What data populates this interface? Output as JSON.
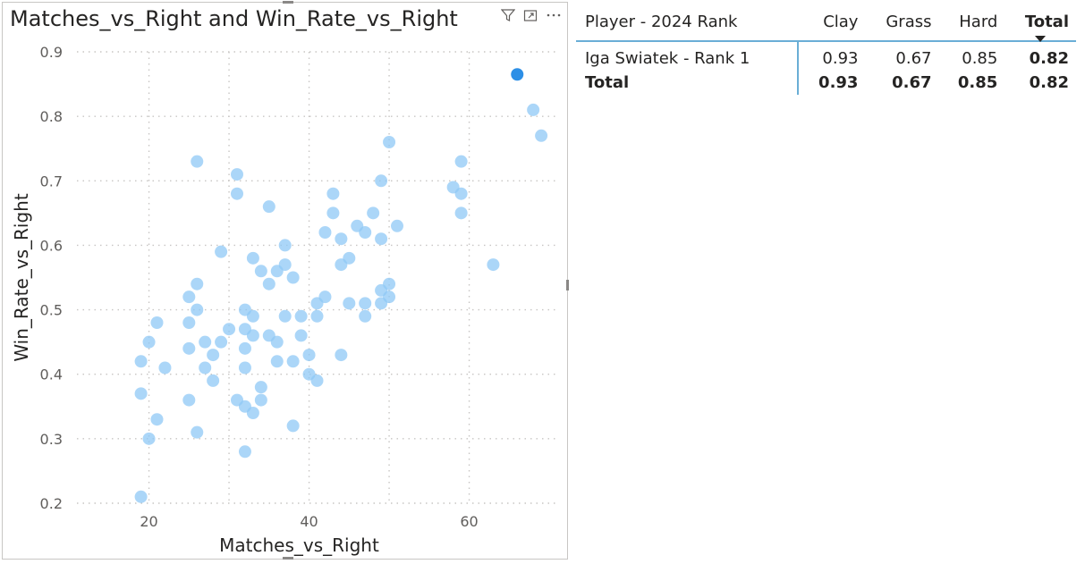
{
  "scatter": {
    "title": "Matches_vs_Right and Win_Rate_vs_Right",
    "header_icons": [
      "filter-icon",
      "focus-mode-icon",
      "more-options-icon"
    ]
  },
  "chart_data": {
    "type": "scatter",
    "title": "Matches_vs_Right and Win_Rate_vs_Right",
    "xlabel": "Matches_vs_Right",
    "ylabel": "Win_Rate_vs_Right",
    "xlim": [
      11,
      71
    ],
    "ylim": [
      0.2,
      0.9
    ],
    "x_ticks": [
      20,
      40,
      60
    ],
    "y_ticks": [
      0.2,
      0.3,
      0.4,
      0.5,
      0.6,
      0.7,
      0.8,
      0.9
    ],
    "grid": true,
    "point_color": "#8fc8f5",
    "highlight_color": "#2d8fe6",
    "highlight": {
      "x": 66,
      "y": 0.865
    },
    "points": [
      {
        "x": 19,
        "y": 0.42
      },
      {
        "x": 19,
        "y": 0.37
      },
      {
        "x": 19,
        "y": 0.21
      },
      {
        "x": 20,
        "y": 0.45
      },
      {
        "x": 20,
        "y": 0.3
      },
      {
        "x": 21,
        "y": 0.48
      },
      {
        "x": 21,
        "y": 0.33
      },
      {
        "x": 22,
        "y": 0.41
      },
      {
        "x": 25,
        "y": 0.52
      },
      {
        "x": 25,
        "y": 0.48
      },
      {
        "x": 25,
        "y": 0.44
      },
      {
        "x": 25,
        "y": 0.36
      },
      {
        "x": 26,
        "y": 0.73
      },
      {
        "x": 26,
        "y": 0.54
      },
      {
        "x": 26,
        "y": 0.5
      },
      {
        "x": 26,
        "y": 0.31
      },
      {
        "x": 27,
        "y": 0.45
      },
      {
        "x": 27,
        "y": 0.41
      },
      {
        "x": 28,
        "y": 0.43
      },
      {
        "x": 28,
        "y": 0.39
      },
      {
        "x": 29,
        "y": 0.59
      },
      {
        "x": 29,
        "y": 0.45
      },
      {
        "x": 30,
        "y": 0.47
      },
      {
        "x": 31,
        "y": 0.71
      },
      {
        "x": 31,
        "y": 0.68
      },
      {
        "x": 31,
        "y": 0.36
      },
      {
        "x": 32,
        "y": 0.5
      },
      {
        "x": 32,
        "y": 0.47
      },
      {
        "x": 32,
        "y": 0.44
      },
      {
        "x": 32,
        "y": 0.41
      },
      {
        "x": 32,
        "y": 0.35
      },
      {
        "x": 32,
        "y": 0.28
      },
      {
        "x": 33,
        "y": 0.58
      },
      {
        "x": 33,
        "y": 0.49
      },
      {
        "x": 33,
        "y": 0.46
      },
      {
        "x": 33,
        "y": 0.34
      },
      {
        "x": 34,
        "y": 0.56
      },
      {
        "x": 34,
        "y": 0.38
      },
      {
        "x": 34,
        "y": 0.36
      },
      {
        "x": 35,
        "y": 0.66
      },
      {
        "x": 35,
        "y": 0.54
      },
      {
        "x": 35,
        "y": 0.46
      },
      {
        "x": 36,
        "y": 0.56
      },
      {
        "x": 36,
        "y": 0.45
      },
      {
        "x": 36,
        "y": 0.42
      },
      {
        "x": 37,
        "y": 0.6
      },
      {
        "x": 37,
        "y": 0.57
      },
      {
        "x": 37,
        "y": 0.49
      },
      {
        "x": 38,
        "y": 0.55
      },
      {
        "x": 38,
        "y": 0.42
      },
      {
        "x": 38,
        "y": 0.32
      },
      {
        "x": 39,
        "y": 0.49
      },
      {
        "x": 39,
        "y": 0.46
      },
      {
        "x": 40,
        "y": 0.43
      },
      {
        "x": 40,
        "y": 0.4
      },
      {
        "x": 41,
        "y": 0.51
      },
      {
        "x": 41,
        "y": 0.49
      },
      {
        "x": 41,
        "y": 0.39
      },
      {
        "x": 42,
        "y": 0.62
      },
      {
        "x": 42,
        "y": 0.52
      },
      {
        "x": 43,
        "y": 0.68
      },
      {
        "x": 43,
        "y": 0.65
      },
      {
        "x": 44,
        "y": 0.61
      },
      {
        "x": 44,
        "y": 0.57
      },
      {
        "x": 44,
        "y": 0.43
      },
      {
        "x": 45,
        "y": 0.58
      },
      {
        "x": 45,
        "y": 0.51
      },
      {
        "x": 46,
        "y": 0.63
      },
      {
        "x": 47,
        "y": 0.62
      },
      {
        "x": 47,
        "y": 0.51
      },
      {
        "x": 47,
        "y": 0.49
      },
      {
        "x": 48,
        "y": 0.65
      },
      {
        "x": 49,
        "y": 0.7
      },
      {
        "x": 49,
        "y": 0.61
      },
      {
        "x": 49,
        "y": 0.53
      },
      {
        "x": 49,
        "y": 0.51
      },
      {
        "x": 50,
        "y": 0.76
      },
      {
        "x": 50,
        "y": 0.54
      },
      {
        "x": 50,
        "y": 0.52
      },
      {
        "x": 51,
        "y": 0.63
      },
      {
        "x": 58,
        "y": 0.69
      },
      {
        "x": 59,
        "y": 0.73
      },
      {
        "x": 59,
        "y": 0.68
      },
      {
        "x": 59,
        "y": 0.65
      },
      {
        "x": 63,
        "y": 0.57
      },
      {
        "x": 68,
        "y": 0.81
      },
      {
        "x": 69,
        "y": 0.77
      }
    ]
  },
  "matrix": {
    "headers": {
      "row": "Player - 2024 Rank",
      "clay": "Clay",
      "grass": "Grass",
      "hard": "Hard",
      "total": "Total"
    },
    "rows": [
      {
        "label": "Iga Swiatek - Rank 1",
        "clay": "0.93",
        "grass": "0.67",
        "hard": "0.85",
        "total": "0.82"
      }
    ],
    "total_row": {
      "label": "Total",
      "clay": "0.93",
      "grass": "0.67",
      "hard": "0.85",
      "total": "0.82"
    }
  }
}
